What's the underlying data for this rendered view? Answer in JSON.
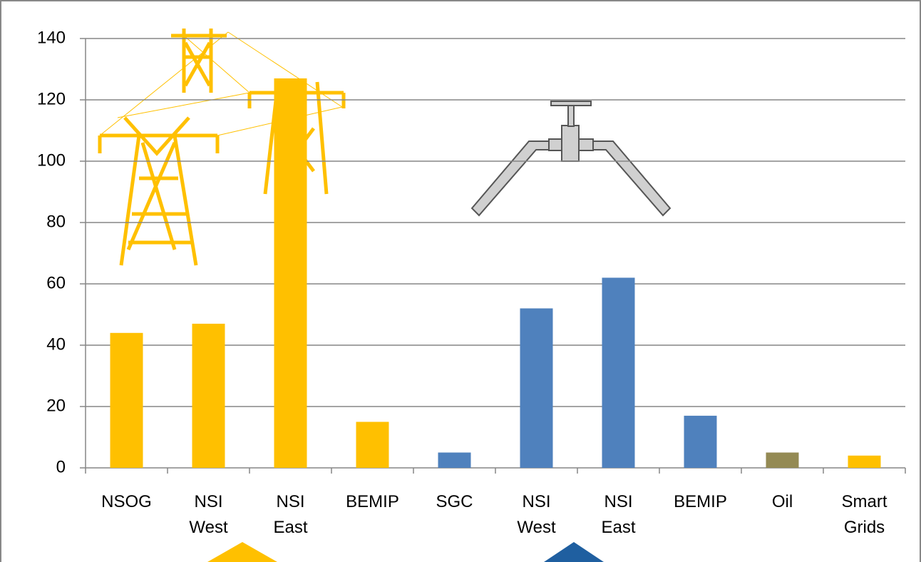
{
  "chart_data": {
    "type": "bar",
    "categories": [
      "NSOG",
      "NSI West",
      "NSI East",
      "BEMIP",
      "SGC",
      "NSI West",
      "NSI East",
      "BEMIP",
      "Oil",
      "Smart Grids"
    ],
    "values": [
      44,
      47,
      127,
      15,
      5,
      52,
      62,
      17,
      5,
      4
    ],
    "colors": [
      "#ffc000",
      "#ffc000",
      "#ffc000",
      "#ffc000",
      "#4f81bd",
      "#4f81bd",
      "#4f81bd",
      "#4f81bd",
      "#948a54",
      "#ffc000"
    ],
    "ylim": [
      0,
      140
    ],
    "yticks": [
      0,
      20,
      40,
      60,
      80,
      100,
      120,
      140
    ],
    "grid": true
  }
}
